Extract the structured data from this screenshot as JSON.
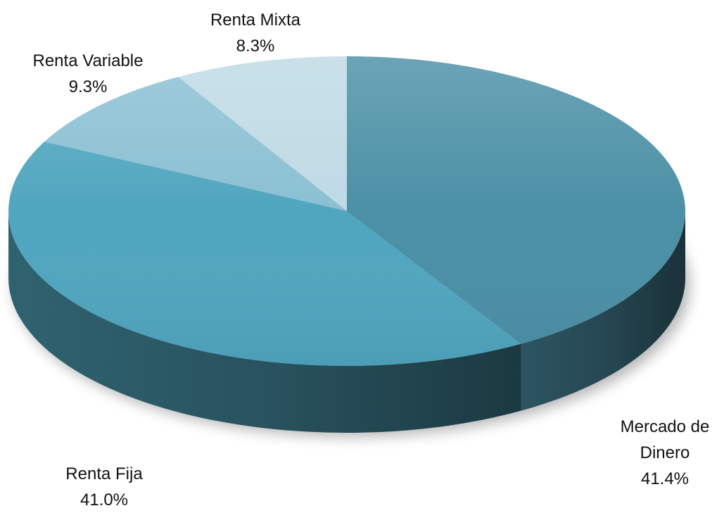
{
  "chart_data": {
    "type": "pie",
    "categories": [
      "Mercado de Dinero",
      "Renta Fija",
      "Renta Variable",
      "Renta Mixta"
    ],
    "values": [
      41.4,
      41.0,
      9.3,
      8.3
    ],
    "value_labels": [
      "41.4%",
      "41.0%",
      "9.3%",
      "8.3%"
    ],
    "colors": [
      "#4b90a6",
      "#50a6bf",
      "#8ac0d3",
      "#bedae5"
    ]
  }
}
